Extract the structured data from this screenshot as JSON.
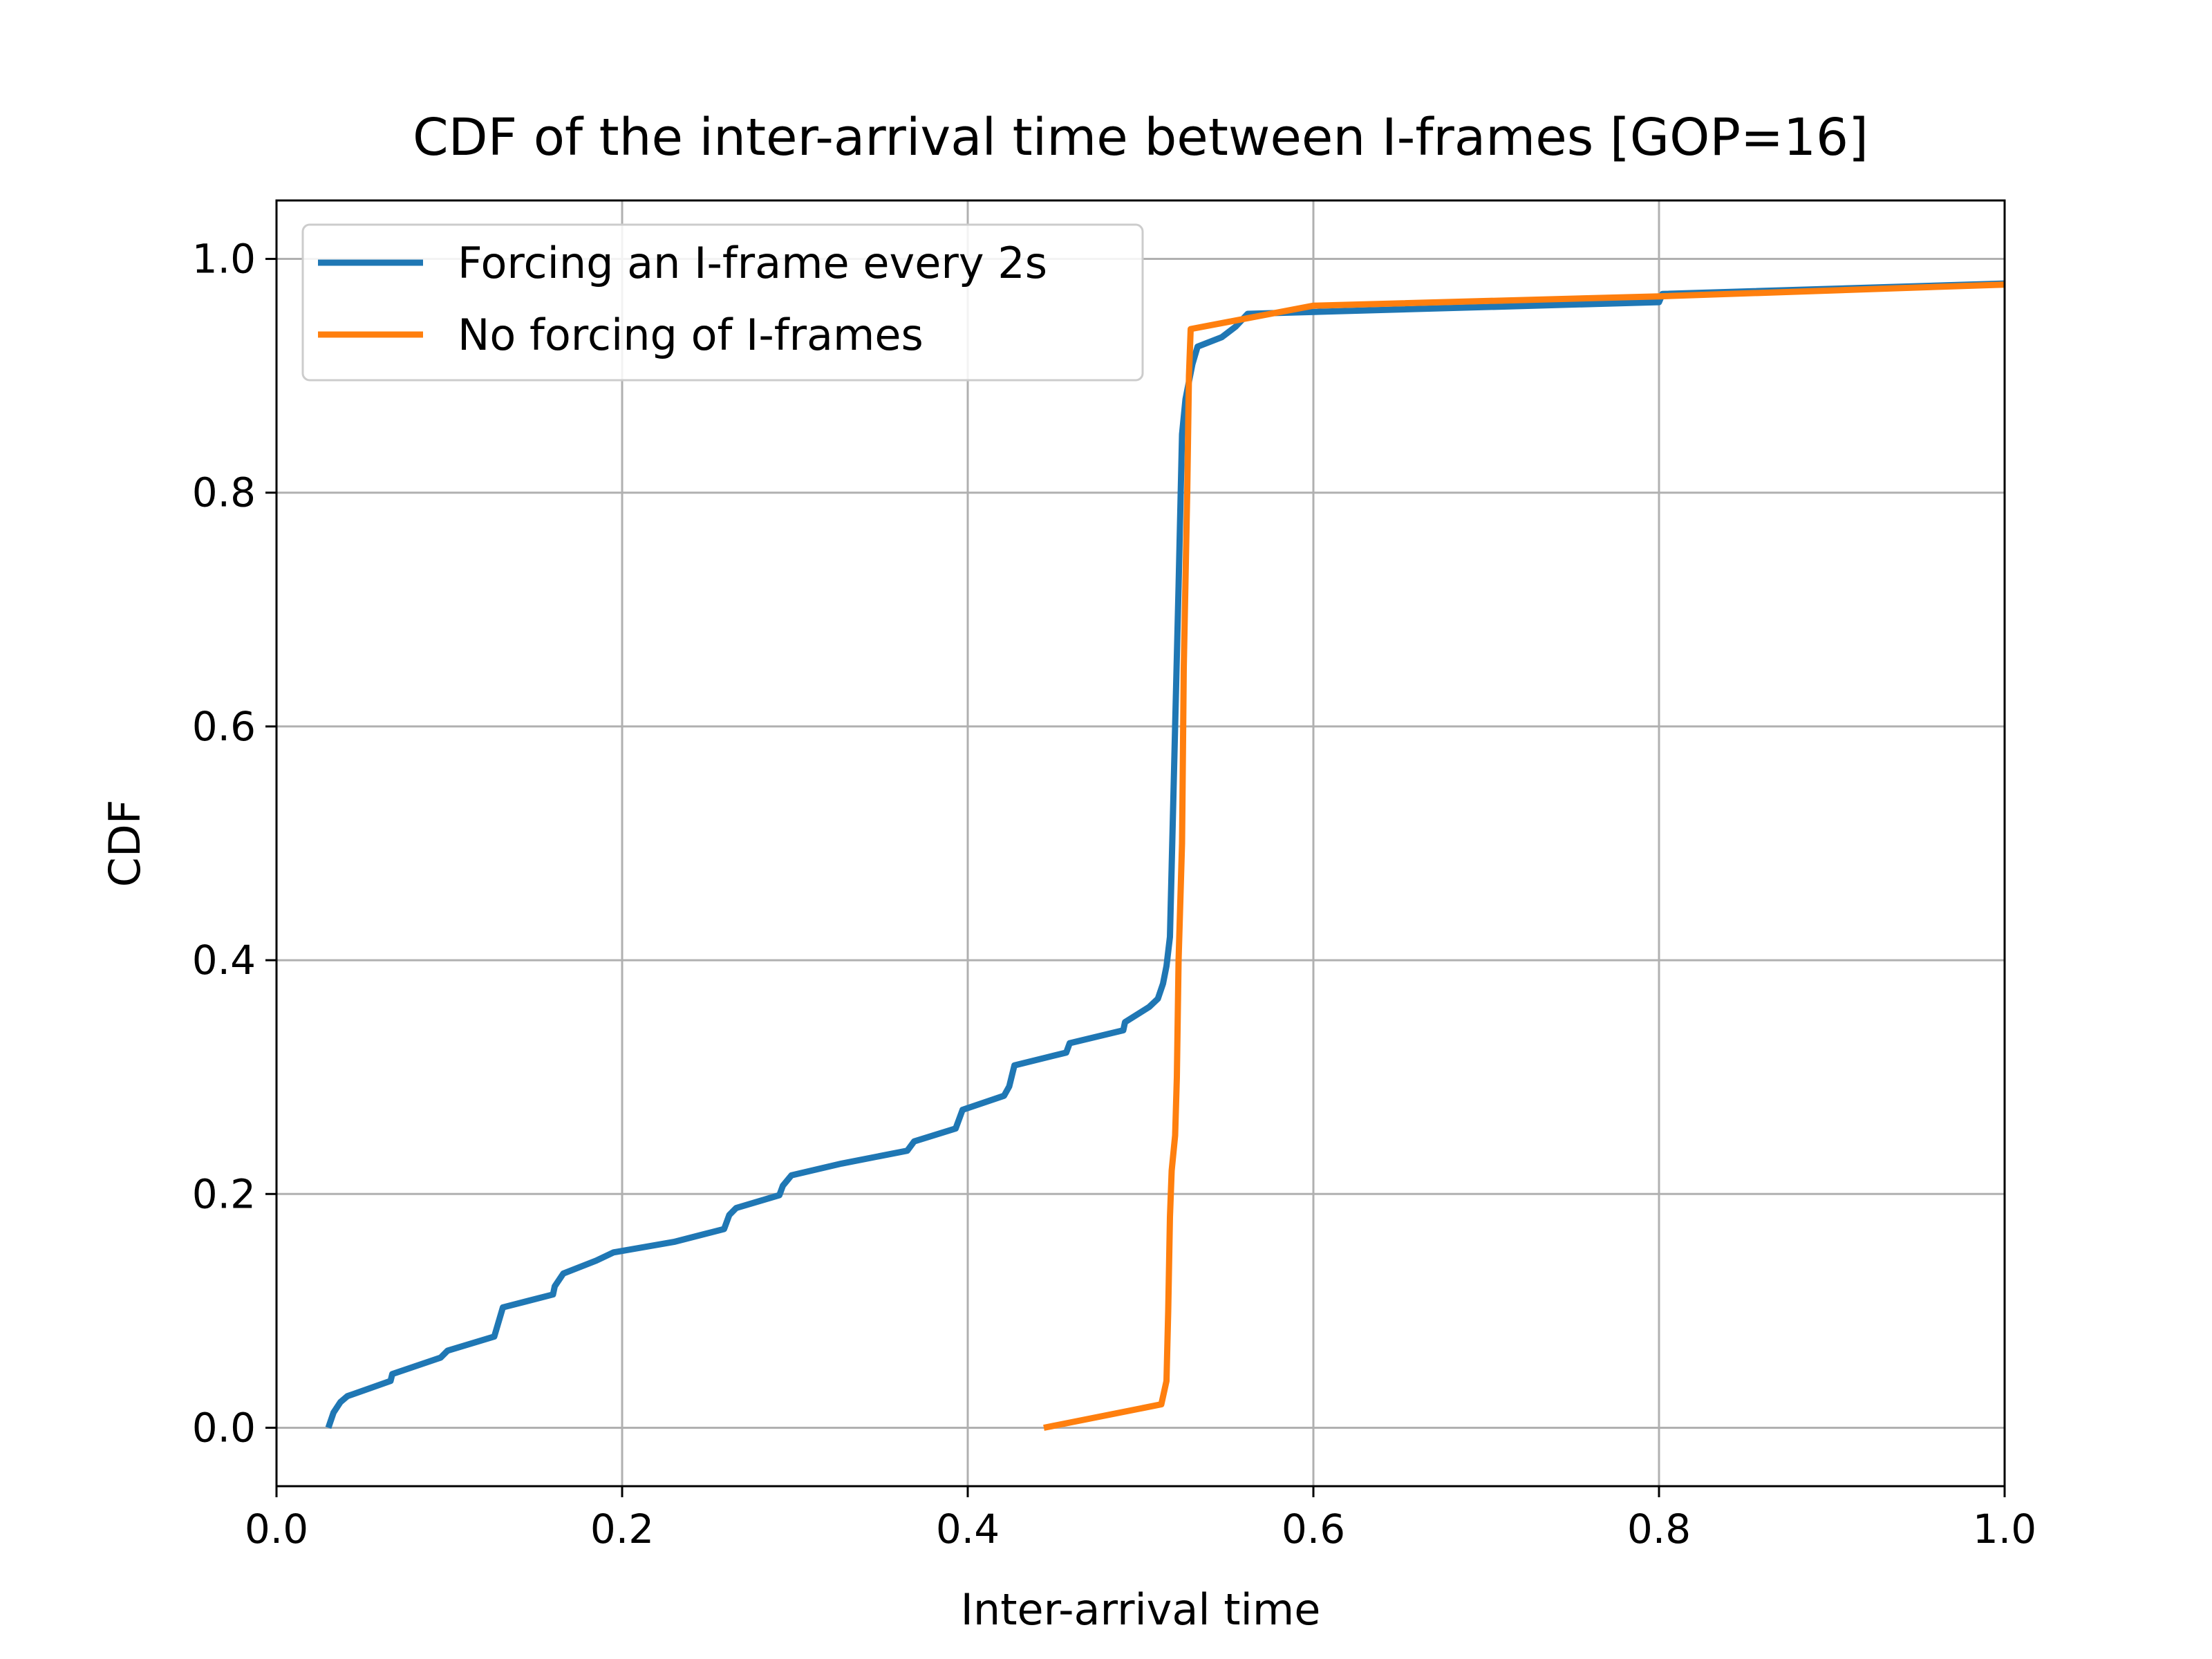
{
  "chart_data": {
    "type": "line",
    "title": "CDF of the inter-arrival time between I-frames [GOP=16]",
    "xlabel": "Inter-arrival time",
    "ylabel": "CDF",
    "xlim": [
      0.0,
      1.0
    ],
    "ylim": [
      -0.05,
      1.05
    ],
    "x_ticks": [
      "0.0",
      "0.2",
      "0.4",
      "0.6",
      "0.8",
      "1.0"
    ],
    "x_tick_values": [
      0.0,
      0.2,
      0.4,
      0.6,
      0.8,
      1.0
    ],
    "y_ticks": [
      "0.0",
      "0.2",
      "0.4",
      "0.6",
      "0.8",
      "1.0"
    ],
    "y_tick_values": [
      0.0,
      0.2,
      0.4,
      0.6,
      0.8,
      1.0
    ],
    "grid": true,
    "legend_position": "top-left",
    "series": [
      {
        "name": "Forcing an I-frame every 2s",
        "color": "#1f77b4",
        "x": [
          0.03,
          0.033,
          0.037,
          0.041,
          0.066,
          0.067,
          0.095,
          0.099,
          0.126,
          0.131,
          0.16,
          0.161,
          0.166,
          0.185,
          0.195,
          0.23,
          0.259,
          0.262,
          0.266,
          0.291,
          0.293,
          0.298,
          0.327,
          0.365,
          0.369,
          0.393,
          0.397,
          0.421,
          0.424,
          0.427,
          0.457,
          0.459,
          0.49,
          0.491,
          0.505,
          0.51,
          0.513,
          0.515,
          0.517,
          0.518,
          0.52,
          0.522,
          0.524,
          0.526,
          0.53,
          0.533,
          0.547,
          0.555,
          0.562,
          0.8,
          0.802,
          1.0
        ],
        "y": [
          0.0,
          0.013,
          0.022,
          0.027,
          0.04,
          0.046,
          0.06,
          0.066,
          0.078,
          0.103,
          0.114,
          0.121,
          0.132,
          0.143,
          0.15,
          0.159,
          0.17,
          0.182,
          0.188,
          0.199,
          0.207,
          0.216,
          0.226,
          0.237,
          0.245,
          0.256,
          0.272,
          0.284,
          0.292,
          0.31,
          0.321,
          0.329,
          0.34,
          0.347,
          0.36,
          0.367,
          0.38,
          0.395,
          0.42,
          0.48,
          0.6,
          0.72,
          0.85,
          0.88,
          0.91,
          0.925,
          0.933,
          0.942,
          0.953,
          0.963,
          0.97,
          0.979
        ]
      },
      {
        "name": "No forcing of I-frames",
        "color": "#ff7f0e",
        "x": [
          0.444,
          0.512,
          0.515,
          0.516,
          0.517,
          0.518,
          0.52,
          0.521,
          0.522,
          0.524,
          0.525,
          0.527,
          0.528,
          0.529,
          0.6,
          0.8,
          1.0
        ],
        "y": [
          0.0,
          0.02,
          0.04,
          0.1,
          0.18,
          0.22,
          0.25,
          0.3,
          0.4,
          0.5,
          0.65,
          0.8,
          0.9,
          0.94,
          0.96,
          0.968,
          0.978
        ]
      }
    ]
  }
}
